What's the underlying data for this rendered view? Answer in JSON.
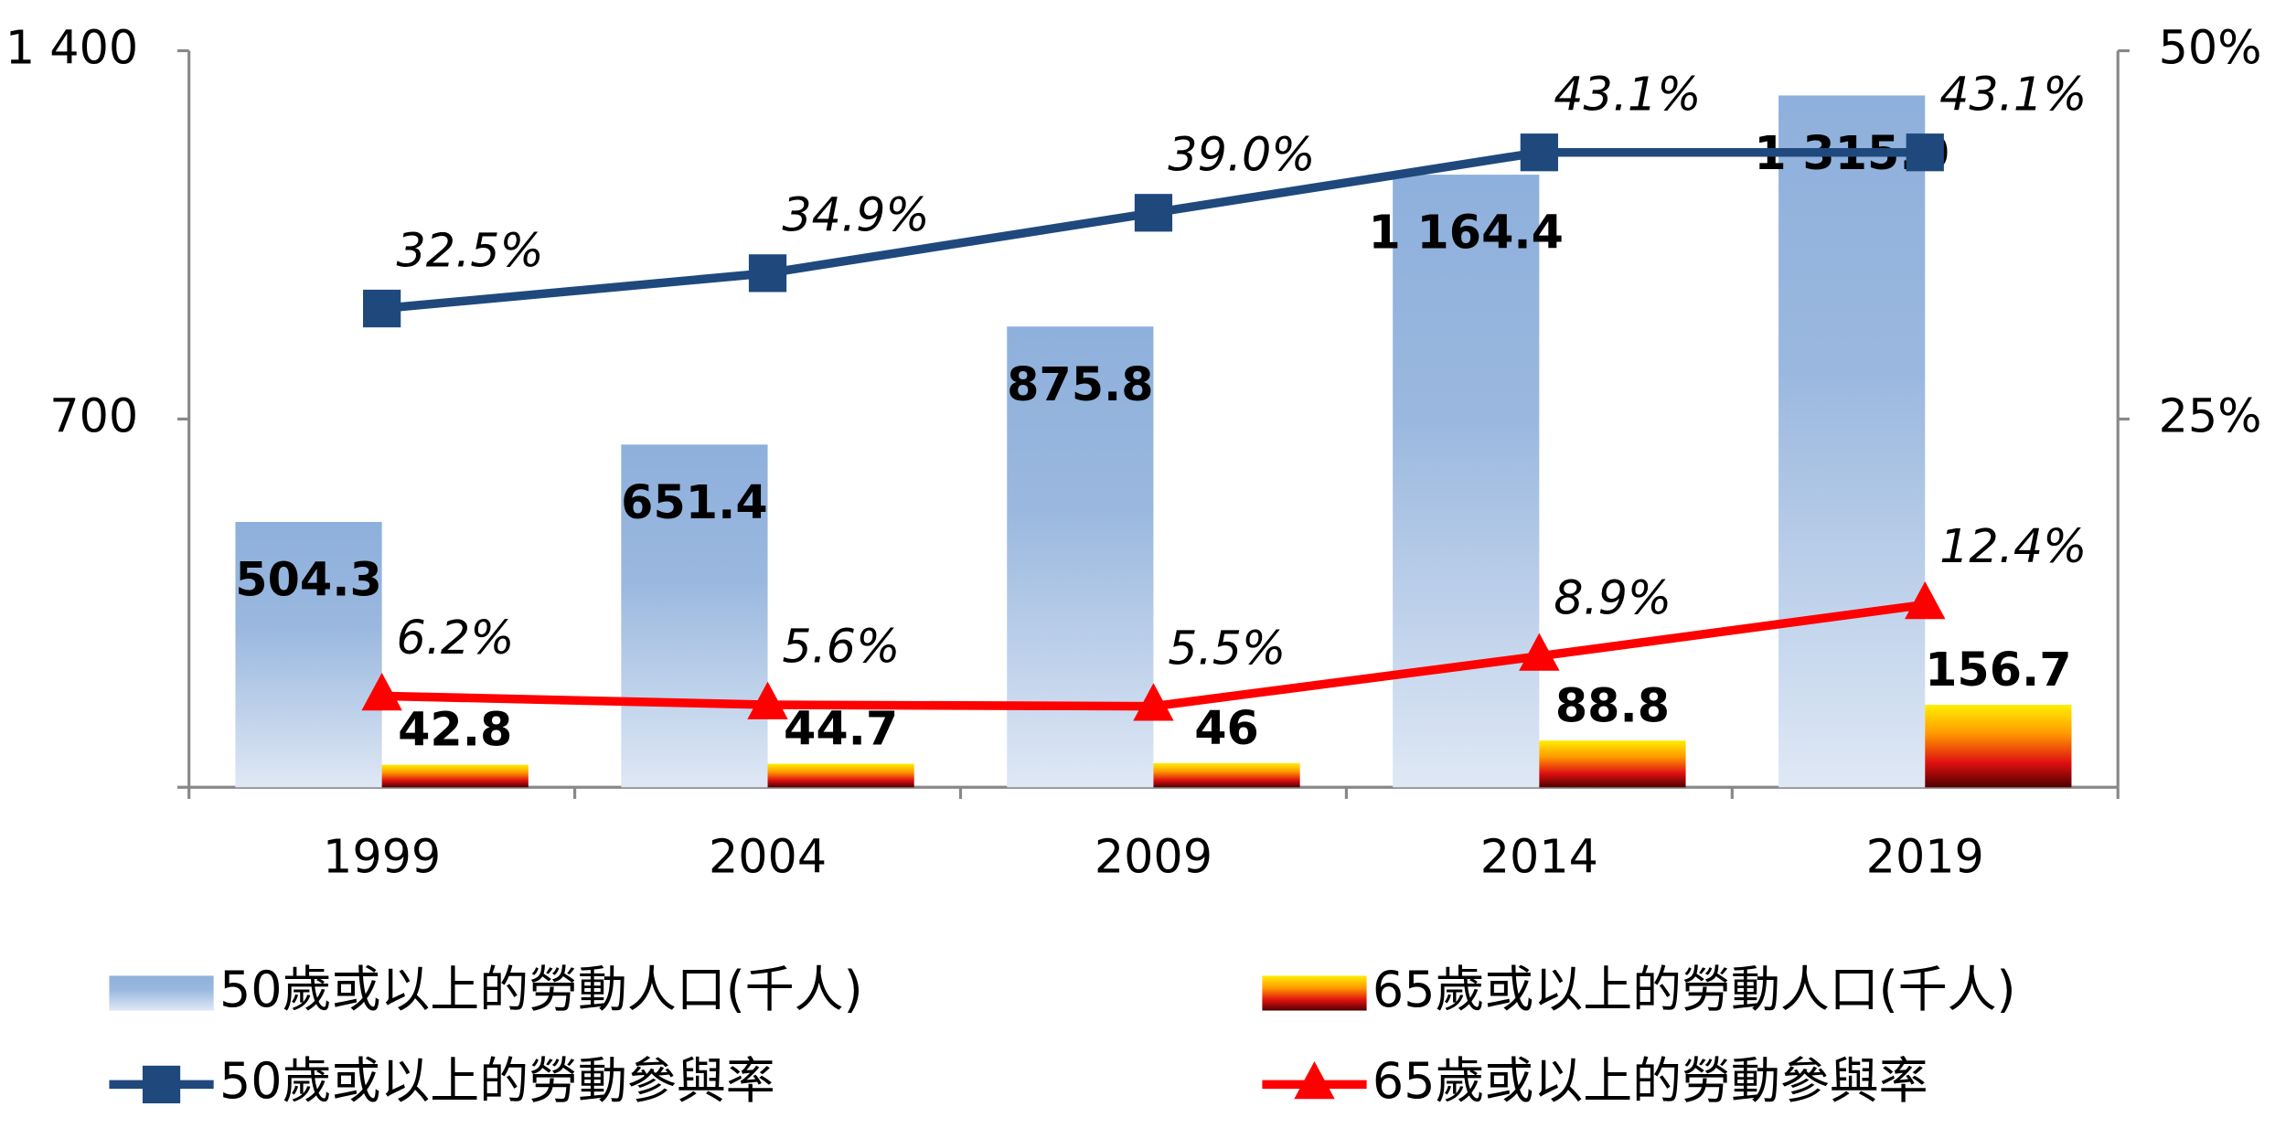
{
  "chart_data": {
    "type": "bar",
    "categories": [
      "1999",
      "2004",
      "2009",
      "2014",
      "2019"
    ],
    "series": [
      {
        "name": "50歲或以上的勞動人口(千人)",
        "type": "bar",
        "color": "#8eb0dc",
        "values": [
          504.3,
          651.4,
          875.8,
          1164.4,
          1315.0
        ],
        "value_labels": [
          "504.3",
          "651.4",
          "875.8",
          "1 164.4",
          "1 315.0"
        ]
      },
      {
        "name": "65歲或以上的勞動人口(千人)",
        "type": "bar",
        "color": "#ff9900",
        "values": [
          42.8,
          44.7,
          46.0,
          88.8,
          156.7
        ]
      },
      {
        "name": "50歲或以上的勞動參與率",
        "type": "line",
        "axis": "y2",
        "color": "#1f497d",
        "marker": "square",
        "values": [
          32.5,
          34.9,
          39.0,
          43.1,
          43.1
        ],
        "value_labels": [
          "32.5%",
          "34.9%",
          "39.0%",
          "43.1%",
          "43.1%"
        ]
      },
      {
        "name": "65歲或以上的勞動參與率",
        "type": "line",
        "axis": "y2",
        "color": "#ff0000",
        "marker": "triangle",
        "values": [
          6.2,
          5.6,
          5.5,
          8.9,
          12.4
        ],
        "value_labels": [
          "6.2%",
          "5.6%",
          "5.5%",
          "8.9%",
          "12.4%"
        ]
      }
    ],
    "ylim": [
      0,
      1400
    ],
    "yticks": [
      700,
      {
        "value": 1400,
        "label": "1 400"
      }
    ],
    "y2lim": [
      0,
      50
    ],
    "y2ticks": [
      {
        "value": 25,
        "label": "25%"
      },
      {
        "value": 50,
        "label": "50%"
      }
    ],
    "grid": false
  }
}
